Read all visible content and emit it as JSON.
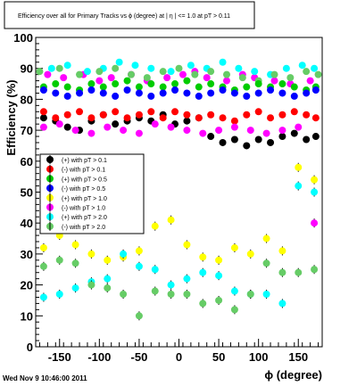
{
  "chart_data": {
    "type": "scatter",
    "title": "Efficiency over all for Primary Tracks vs ϕ (degree) at | η | <= 1.0 at pT > 0.11",
    "xlabel": "ϕ (degree)",
    "ylabel": "Efficiency (%)",
    "xlim": [
      -180,
      180
    ],
    "ylim": [
      0,
      100
    ],
    "xticks": [
      -150,
      -100,
      -50,
      0,
      50,
      100,
      150
    ],
    "yticks": [
      0,
      10,
      20,
      30,
      40,
      50,
      60,
      70,
      80,
      90,
      100
    ],
    "grid": false,
    "legend_position": "left-middle",
    "series": [
      {
        "name": "(+) with pT > 0.1",
        "color": "#000000",
        "x": [
          -170,
          -155,
          -140,
          -125,
          -110,
          -95,
          -80,
          -65,
          -50,
          -35,
          -20,
          -5,
          10,
          25,
          40,
          55,
          70,
          85,
          100,
          115,
          130,
          145,
          160,
          172
        ],
        "y": [
          74,
          73,
          71,
          70,
          73,
          75,
          72,
          73,
          74,
          73,
          75,
          72,
          73,
          74,
          68,
          66,
          67,
          65,
          67,
          66,
          68,
          69,
          67,
          68
        ]
      },
      {
        "name": "(-) with pT > 0.1",
        "color": "#ff0000",
        "x": [
          -170,
          -155,
          -140,
          -125,
          -110,
          -95,
          -80,
          -65,
          -50,
          -35,
          -20,
          -5,
          10,
          25,
          40,
          55,
          70,
          85,
          100,
          115,
          130,
          145,
          160,
          172
        ],
        "y": [
          76,
          74,
          75,
          76,
          74,
          75,
          76,
          74,
          75,
          76,
          74,
          76,
          75,
          74,
          75,
          74,
          73,
          75,
          76,
          74,
          75,
          76,
          75,
          74
        ]
      },
      {
        "name": "(+) with pT > 0.5",
        "color": "#00cc00",
        "x": [
          -170,
          -155,
          -140,
          -125,
          -110,
          -95,
          -80,
          -65,
          -50,
          -35,
          -20,
          -5,
          10,
          25,
          40,
          55,
          70,
          85,
          100,
          115,
          130,
          145,
          160,
          172
        ],
        "y": [
          84,
          85,
          84,
          83,
          85,
          84,
          85,
          86,
          84,
          85,
          84,
          85,
          86,
          84,
          85,
          84,
          83,
          84,
          85,
          84,
          85,
          84,
          83,
          84
        ]
      },
      {
        "name": "(-) with pT > 0.5",
        "color": "#0000ff",
        "x": [
          -170,
          -155,
          -140,
          -125,
          -110,
          -95,
          -80,
          -65,
          -50,
          -35,
          -20,
          -5,
          10,
          25,
          40,
          55,
          70,
          85,
          100,
          115,
          130,
          145,
          160,
          172
        ],
        "y": [
          83,
          82,
          81,
          82,
          83,
          82,
          81,
          83,
          82,
          81,
          82,
          83,
          82,
          81,
          82,
          83,
          82,
          81,
          82,
          83,
          82,
          81,
          82,
          83
        ]
      },
      {
        "name": "(+) with pT > 1.0",
        "color": "#ffff00",
        "x": [
          -170,
          -150,
          -130,
          -110,
          -90,
          -70,
          -50,
          -30,
          -10,
          10,
          30,
          50,
          70,
          90,
          110,
          130,
          150,
          170
        ],
        "y": [
          32,
          36,
          33,
          30,
          28,
          29,
          31,
          39,
          41,
          33,
          29,
          28,
          32,
          30,
          35,
          31,
          58,
          54
        ]
      },
      {
        "name": "(-) with pT > 1.0",
        "color": "#ff00ff",
        "x": [
          -170,
          -150,
          -130,
          -110,
          -90,
          -70,
          -50,
          -30,
          -10,
          10,
          30,
          50,
          70,
          90,
          110,
          130,
          150,
          170
        ],
        "y": [
          71,
          72,
          70,
          69,
          71,
          70,
          69,
          72,
          71,
          70,
          69,
          70,
          71,
          70,
          69,
          70,
          71,
          40
        ]
      },
      {
        "name": "(+) with pT > 2.0",
        "color": "#00ffff",
        "x": [
          -170,
          -150,
          -130,
          -110,
          -90,
          -70,
          -50,
          -30,
          -10,
          10,
          30,
          50,
          70,
          90,
          110,
          130,
          150,
          170
        ],
        "y": [
          16,
          17,
          19,
          21,
          22,
          30,
          26,
          25,
          20,
          22,
          24,
          23,
          18,
          17,
          17,
          14,
          52,
          50
        ]
      },
      {
        "name": "(-) with pT > 2.0",
        "color": "#66cc66",
        "x": [
          -170,
          -150,
          -130,
          -110,
          -90,
          -70,
          -50,
          -30,
          -10,
          10,
          30,
          50,
          70,
          90,
          110,
          130,
          150,
          170
        ],
        "y": [
          26,
          28,
          27,
          20,
          19,
          17,
          10,
          18,
          17,
          17,
          14,
          15,
          12,
          17,
          27,
          24,
          24,
          25
        ]
      }
    ],
    "noise_series": [
      {
        "color": "#ff00ff",
        "x": [
          -165,
          -145,
          -120,
          -100,
          -85,
          -60,
          -40,
          -15,
          5,
          20,
          35,
          60,
          80,
          95,
          120,
          140,
          165
        ],
        "y": [
          88,
          87,
          88,
          86,
          87,
          88,
          86,
          87,
          88,
          89,
          87,
          86,
          88,
          87,
          86,
          85,
          86
        ]
      },
      {
        "color": "#00ffff",
        "x": [
          -160,
          -140,
          -115,
          -95,
          -75,
          -55,
          -35,
          -10,
          15,
          35,
          55,
          75,
          95,
          115,
          135,
          155,
          170
        ],
        "y": [
          90,
          91,
          89,
          90,
          92,
          91,
          90,
          89,
          91,
          90,
          92,
          90,
          89,
          88,
          90,
          91,
          90
        ]
      },
      {
        "color": "#66cc66",
        "x": [
          -175,
          -150,
          -125,
          -100,
          -80,
          -60,
          -40,
          -20,
          0,
          20,
          40,
          60,
          80,
          100,
          120,
          140,
          160,
          175
        ],
        "y": [
          89,
          90,
          88,
          89,
          90,
          88,
          87,
          89,
          90,
          88,
          89,
          88,
          87,
          86,
          88,
          87,
          89,
          88
        ]
      }
    ]
  },
  "footer": "Wed Nov  9 10:46:00 2011"
}
